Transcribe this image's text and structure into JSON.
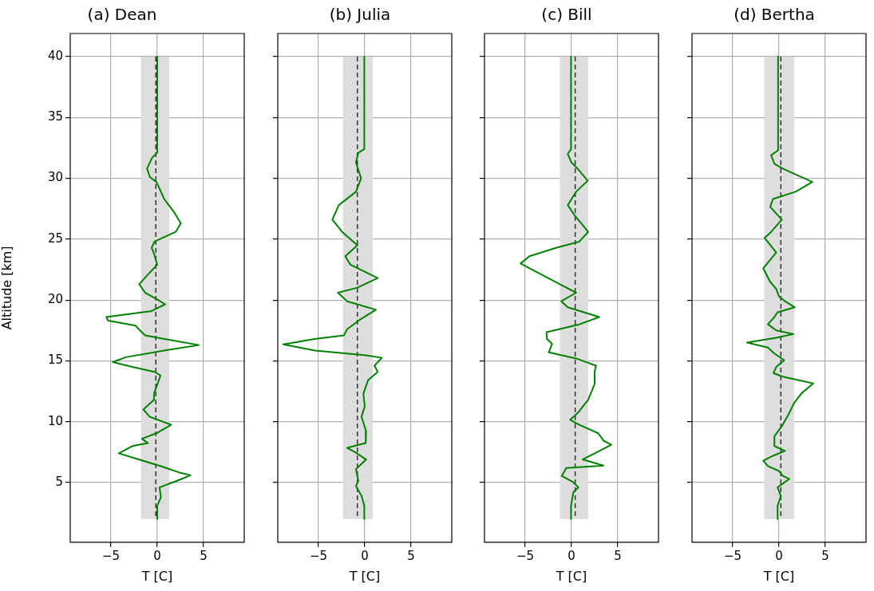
{
  "chart_data": [
    {
      "type": "line",
      "title": "(a) Dean",
      "xlabel": "T [C]",
      "ylabel": "Altitude [km]",
      "xlim": [
        -9.4,
        9.4
      ],
      "ylim": [
        0.1,
        41.9
      ],
      "xticks": [
        -5,
        0,
        5
      ],
      "yticks": [
        5,
        10,
        15,
        20,
        25,
        30,
        35,
        40
      ],
      "grid": true,
      "series": [
        {
          "color": "#008000",
          "x": [
            0,
            0,
            -0.55,
            -1.1,
            -0.8,
            -0.1,
            0.25,
            0.75,
            1.8,
            2.55,
            2.0,
            -0.3,
            -0.6,
            -0.3,
            0,
            -1.0,
            -1.95,
            -1.3,
            0,
            0.85,
            -0.6,
            -5.5,
            -5.3,
            -2.35,
            -2.0,
            -1.3,
            0.05,
            4.5,
            0.75,
            -3.4,
            -4.8,
            -2.7,
            -0.3,
            0.35,
            0.05,
            -0.35,
            -0.35,
            -1.5,
            -0.8,
            1.5,
            0.05,
            -1.65,
            -1.0,
            -2.7,
            -4.15,
            -2.0,
            0.4,
            2.5,
            3.6,
            2.15,
            0.25,
            0.4,
            0,
            0
          ],
          "values": [
            40,
            32.1,
            31.7,
            30.8,
            30.1,
            29.7,
            29.15,
            28.3,
            27.25,
            26.3,
            25.6,
            24.8,
            24.3,
            23.7,
            22.9,
            22.1,
            21.3,
            20.6,
            20.05,
            19.65,
            19.1,
            18.6,
            18.3,
            17.9,
            17.6,
            17.1,
            16.9,
            16.3,
            15.85,
            15.3,
            14.9,
            14.5,
            14.1,
            13.8,
            13.15,
            12.3,
            11.8,
            11.0,
            10.4,
            9.75,
            9.1,
            8.6,
            8.25,
            8.0,
            7.4,
            6.9,
            6.35,
            5.8,
            5.6,
            5.15,
            4.6,
            3.8,
            3.1,
            2.0
          ]
        }
      ],
      "bands": [
        {
          "axis": "x",
          "from": -1.75,
          "to": 1.3,
          "color": "#dddddd"
        }
      ],
      "ref_lines": [
        {
          "axis": "x",
          "value": -0.15,
          "color": "#333333",
          "line_style": "dashed"
        }
      ]
    },
    {
      "type": "line",
      "title": "(b) Julia",
      "xlabel": "T [C]",
      "xlim": [
        -9.4,
        9.4
      ],
      "ylim": [
        0.1,
        41.9
      ],
      "xticks": [
        -5,
        0,
        5
      ],
      "yticks": [
        5,
        10,
        15,
        20,
        25,
        30,
        35,
        40
      ],
      "grid": true,
      "tick_labels": "x",
      "series": [
        {
          "color": "#008000",
          "x": [
            -0.05,
            -0.05,
            -0.7,
            -0.95,
            -0.4,
            -0.95,
            -2.8,
            -3.5,
            -2.45,
            -0.8,
            -2.1,
            -1.55,
            1.4,
            -0.85,
            -2.9,
            -1.9,
            1.2,
            -0.5,
            -1.9,
            -2.25,
            -5.4,
            -8.8,
            -5.4,
            0.15,
            1.85,
            1.05,
            1.4,
            0.35,
            -0.15,
            0,
            -0.35,
            0.15,
            0.1,
            -1.9,
            -1.05,
            0.15,
            -0.95,
            -0.7,
            -0.95,
            -0.35,
            -0.05,
            -0.05
          ],
          "values": [
            40,
            32.4,
            32.1,
            31.3,
            30.0,
            28.9,
            27.8,
            26.6,
            25.6,
            24.5,
            23.6,
            22.9,
            21.8,
            21.0,
            20.6,
            19.9,
            19.2,
            18.4,
            17.6,
            17.1,
            16.8,
            16.35,
            15.85,
            15.45,
            15.25,
            14.6,
            14.1,
            13.4,
            12.3,
            11.25,
            10.4,
            9.2,
            8.25,
            7.85,
            7.5,
            6.9,
            6.1,
            5.15,
            4.7,
            3.9,
            3.1,
            2.0
          ]
        }
      ],
      "bands": [
        {
          "axis": "x",
          "from": -2.35,
          "to": 0.85,
          "color": "#dddddd"
        }
      ],
      "ref_lines": [
        {
          "axis": "x",
          "value": -0.8,
          "color": "#333333",
          "line_style": "dashed"
        }
      ]
    },
    {
      "type": "line",
      "title": "(c) Bill",
      "xlabel": "T [C]",
      "xlim": [
        -9.4,
        9.4
      ],
      "ylim": [
        0.1,
        41.9
      ],
      "xticks": [
        -5,
        0,
        5
      ],
      "yticks": [
        5,
        10,
        15,
        20,
        25,
        30,
        35,
        40
      ],
      "grid": true,
      "tick_labels": "x",
      "series": [
        {
          "color": "#008000",
          "x": [
            -0.05,
            -0.05,
            -0.4,
            0,
            0.65,
            1.75,
            0.5,
            -0.4,
            0.3,
            1.8,
            0.85,
            -1.6,
            -4.55,
            -5.5,
            -4.0,
            -1.25,
            0.5,
            -1.1,
            -0.4,
            3.0,
            0.85,
            -2.7,
            -2.65,
            -2.1,
            -2.45,
            0.5,
            2.65,
            2.5,
            2.5,
            1.8,
            0.65,
            -0.15,
            0.85,
            2.9,
            3.45,
            4.3,
            2.9,
            1.2,
            3.45,
            -0.55,
            -1.05,
            0.15,
            0.75,
            0.2,
            -0.05,
            -0.05
          ],
          "values": [
            40,
            32.4,
            32.0,
            31.3,
            30.8,
            29.8,
            28.9,
            27.8,
            27.0,
            25.6,
            24.8,
            24.3,
            23.6,
            23.0,
            22.4,
            21.3,
            20.6,
            19.9,
            19.4,
            18.6,
            18.0,
            17.35,
            16.8,
            16.4,
            15.7,
            15.2,
            14.6,
            14.1,
            13.1,
            11.8,
            10.7,
            10.15,
            9.75,
            9.05,
            8.45,
            8.1,
            7.55,
            6.9,
            6.4,
            6.2,
            5.55,
            5.05,
            4.6,
            4.2,
            3.1,
            2.0
          ]
        }
      ],
      "bands": [
        {
          "axis": "x",
          "from": -1.25,
          "to": 1.8,
          "color": "#dddddd"
        }
      ],
      "ref_lines": [
        {
          "axis": "x",
          "value": 0.4,
          "color": "#333333",
          "line_style": "dashed"
        }
      ]
    },
    {
      "type": "line",
      "title": "(d) Bertha",
      "xlabel": "T [C]",
      "xlim": [
        -9.4,
        9.4
      ],
      "ylim": [
        0.1,
        41.9
      ],
      "xticks": [
        -5,
        0,
        5
      ],
      "yticks": [
        5,
        10,
        15,
        20,
        25,
        30,
        35,
        40
      ],
      "grid": true,
      "tick_labels": "x",
      "series": [
        {
          "color": "#008000",
          "x": [
            -0.1,
            -0.1,
            -0.85,
            -0.5,
            0.4,
            3.6,
            1.8,
            -0.65,
            -0.95,
            0.3,
            -0.85,
            -1.55,
            -0.3,
            -1.7,
            -1.0,
            -0.3,
            0,
            0.65,
            1.7,
            -0.15,
            -0.5,
            -1.2,
            -0.3,
            1.55,
            -0.3,
            -3.45,
            -1.2,
            -0.5,
            0.55,
            -0.3,
            -0.6,
            0.4,
            3.7,
            2.45,
            1.6,
            1.1,
            0.4,
            -0.5,
            -0.5,
            0.65,
            -0.65,
            -1.7,
            -1.2,
            0,
            0.4,
            1.1,
            -0.15,
            0.2,
            -0.15,
            -0.15
          ],
          "values": [
            40,
            32.3,
            31.9,
            31.2,
            30.8,
            29.7,
            28.9,
            28.3,
            27.65,
            26.6,
            25.6,
            25.1,
            23.9,
            22.6,
            21.55,
            20.9,
            20.3,
            19.9,
            19.4,
            19.0,
            18.6,
            18.0,
            17.5,
            17.2,
            16.9,
            16.5,
            16.1,
            15.6,
            15.05,
            14.5,
            14.0,
            13.7,
            13.15,
            12.35,
            11.5,
            10.7,
            9.75,
            8.8,
            8.0,
            7.6,
            7.2,
            6.8,
            6.35,
            5.95,
            5.55,
            5.3,
            4.6,
            3.9,
            3.1,
            2.0
          ]
        }
      ],
      "bands": [
        {
          "axis": "x",
          "from": -1.6,
          "to": 1.65,
          "color": "#dddddd"
        }
      ],
      "ref_lines": [
        {
          "axis": "x",
          "value": 0.2,
          "color": "#333333",
          "line_style": "dashed"
        }
      ]
    }
  ]
}
